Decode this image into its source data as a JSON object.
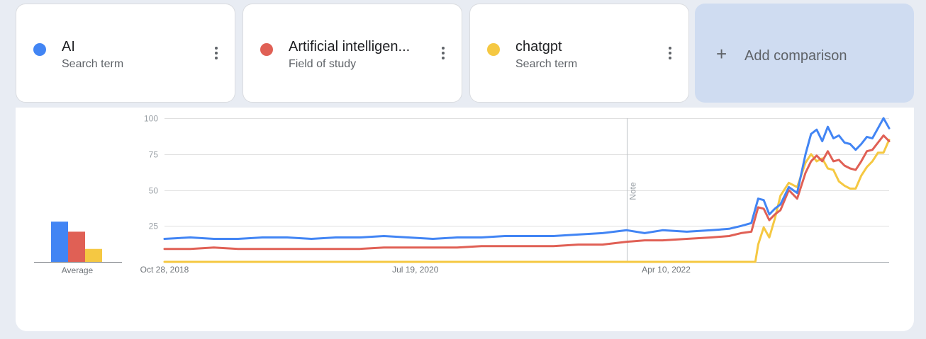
{
  "terms": [
    {
      "name": "AI",
      "type": "Search term",
      "color": "#4285f4"
    },
    {
      "name": "Artificial intelligen...",
      "type": "Field of study",
      "color": "#e06055"
    },
    {
      "name": "chatgpt",
      "type": "Search term",
      "color": "#f5c842"
    }
  ],
  "add_comparison": {
    "label": "Add comparison",
    "icon": "plus-icon"
  },
  "menu_icon": "more-vert-icon",
  "chart_data": [
    {
      "type": "bar",
      "categories": [
        "AI",
        "Artificial intelligence",
        "chatgpt"
      ],
      "values": [
        28,
        21,
        9
      ],
      "xlabel": "Average",
      "ylim": [
        0,
        100
      ]
    },
    {
      "type": "line",
      "x_range": [
        "2018-10-28",
        "2023-10-22"
      ],
      "x_ticks": [
        {
          "date": "2018-10-28",
          "label": "Oct 28, 2018"
        },
        {
          "date": "2020-07-19",
          "label": "Jul 19, 2020"
        },
        {
          "date": "2022-04-10",
          "label": "Apr 10, 2022"
        }
      ],
      "ylim": [
        0,
        100
      ],
      "y_ticks": [
        25,
        50,
        75,
        100
      ],
      "grid": true,
      "annotation": {
        "date": "2022-01-01",
        "label": "Note"
      },
      "series": [
        {
          "name": "AI",
          "color": "#4285f4",
          "points": [
            [
              "2018-10-28",
              16
            ],
            [
              "2019-01-01",
              17
            ],
            [
              "2019-03-01",
              16
            ],
            [
              "2019-05-01",
              16
            ],
            [
              "2019-07-01",
              17
            ],
            [
              "2019-09-01",
              17
            ],
            [
              "2019-11-01",
              16
            ],
            [
              "2020-01-01",
              17
            ],
            [
              "2020-03-01",
              17
            ],
            [
              "2020-05-01",
              18
            ],
            [
              "2020-07-01",
              17
            ],
            [
              "2020-09-01",
              16
            ],
            [
              "2020-11-01",
              17
            ],
            [
              "2021-01-01",
              17
            ],
            [
              "2021-03-01",
              18
            ],
            [
              "2021-05-01",
              18
            ],
            [
              "2021-07-01",
              18
            ],
            [
              "2021-09-01",
              19
            ],
            [
              "2021-11-01",
              20
            ],
            [
              "2022-01-01",
              22
            ],
            [
              "2022-02-15",
              20
            ],
            [
              "2022-04-01",
              22
            ],
            [
              "2022-06-01",
              21
            ],
            [
              "2022-08-01",
              22
            ],
            [
              "2022-09-15",
              23
            ],
            [
              "2022-10-15",
              25
            ],
            [
              "2022-11-10",
              27
            ],
            [
              "2022-11-27",
              44
            ],
            [
              "2022-12-11",
              43
            ],
            [
              "2022-12-25",
              33
            ],
            [
              "2023-01-08",
              37
            ],
            [
              "2023-01-22",
              40
            ],
            [
              "2023-02-12",
              52
            ],
            [
              "2023-03-05",
              48
            ],
            [
              "2023-03-26",
              75
            ],
            [
              "2023-04-09",
              89
            ],
            [
              "2023-04-23",
              92
            ],
            [
              "2023-05-07",
              84
            ],
            [
              "2023-05-21",
              94
            ],
            [
              "2023-06-04",
              86
            ],
            [
              "2023-06-18",
              88
            ],
            [
              "2023-07-02",
              83
            ],
            [
              "2023-07-16",
              82
            ],
            [
              "2023-07-30",
              78
            ],
            [
              "2023-08-13",
              82
            ],
            [
              "2023-08-27",
              87
            ],
            [
              "2023-09-10",
              86
            ],
            [
              "2023-09-24",
              93
            ],
            [
              "2023-10-08",
              100
            ],
            [
              "2023-10-22",
              93
            ]
          ]
        },
        {
          "name": "Artificial intelligence",
          "color": "#e06055",
          "points": [
            [
              "2018-10-28",
              9
            ],
            [
              "2019-01-01",
              9
            ],
            [
              "2019-03-01",
              10
            ],
            [
              "2019-05-01",
              9
            ],
            [
              "2019-07-01",
              9
            ],
            [
              "2019-09-01",
              9
            ],
            [
              "2019-11-01",
              9
            ],
            [
              "2020-01-01",
              9
            ],
            [
              "2020-03-01",
              9
            ],
            [
              "2020-05-01",
              10
            ],
            [
              "2020-07-01",
              10
            ],
            [
              "2020-09-01",
              10
            ],
            [
              "2020-11-01",
              10
            ],
            [
              "2021-01-01",
              11
            ],
            [
              "2021-03-01",
              11
            ],
            [
              "2021-05-01",
              11
            ],
            [
              "2021-07-01",
              11
            ],
            [
              "2021-09-01",
              12
            ],
            [
              "2021-11-01",
              12
            ],
            [
              "2022-01-01",
              14
            ],
            [
              "2022-02-15",
              15
            ],
            [
              "2022-04-01",
              15
            ],
            [
              "2022-06-01",
              16
            ],
            [
              "2022-08-01",
              17
            ],
            [
              "2022-09-15",
              18
            ],
            [
              "2022-10-15",
              20
            ],
            [
              "2022-11-10",
              21
            ],
            [
              "2022-11-27",
              38
            ],
            [
              "2022-12-11",
              37
            ],
            [
              "2022-12-25",
              29
            ],
            [
              "2023-01-08",
              33
            ],
            [
              "2023-01-22",
              36
            ],
            [
              "2023-02-12",
              50
            ],
            [
              "2023-03-05",
              44
            ],
            [
              "2023-03-26",
              62
            ],
            [
              "2023-04-09",
              70
            ],
            [
              "2023-04-23",
              74
            ],
            [
              "2023-05-07",
              70
            ],
            [
              "2023-05-21",
              77
            ],
            [
              "2023-06-04",
              70
            ],
            [
              "2023-06-18",
              71
            ],
            [
              "2023-07-02",
              67
            ],
            [
              "2023-07-16",
              65
            ],
            [
              "2023-07-30",
              64
            ],
            [
              "2023-08-13",
              70
            ],
            [
              "2023-08-27",
              77
            ],
            [
              "2023-09-10",
              78
            ],
            [
              "2023-09-24",
              83
            ],
            [
              "2023-10-08",
              88
            ],
            [
              "2023-10-22",
              84
            ]
          ]
        },
        {
          "name": "chatgpt",
          "color": "#f5c842",
          "points": [
            [
              "2018-10-28",
              0
            ],
            [
              "2022-11-20",
              0
            ],
            [
              "2022-11-27",
              12
            ],
            [
              "2022-12-11",
              24
            ],
            [
              "2022-12-25",
              17
            ],
            [
              "2023-01-08",
              30
            ],
            [
              "2023-01-22",
              46
            ],
            [
              "2023-02-12",
              55
            ],
            [
              "2023-03-05",
              52
            ],
            [
              "2023-03-26",
              69
            ],
            [
              "2023-04-09",
              75
            ],
            [
              "2023-04-23",
              70
            ],
            [
              "2023-05-07",
              72
            ],
            [
              "2023-05-21",
              65
            ],
            [
              "2023-06-04",
              64
            ],
            [
              "2023-06-18",
              56
            ],
            [
              "2023-07-02",
              53
            ],
            [
              "2023-07-16",
              51
            ],
            [
              "2023-07-30",
              51
            ],
            [
              "2023-08-13",
              60
            ],
            [
              "2023-08-27",
              66
            ],
            [
              "2023-09-10",
              70
            ],
            [
              "2023-09-24",
              76
            ],
            [
              "2023-10-08",
              76
            ],
            [
              "2023-10-22",
              85
            ]
          ]
        }
      ]
    }
  ]
}
